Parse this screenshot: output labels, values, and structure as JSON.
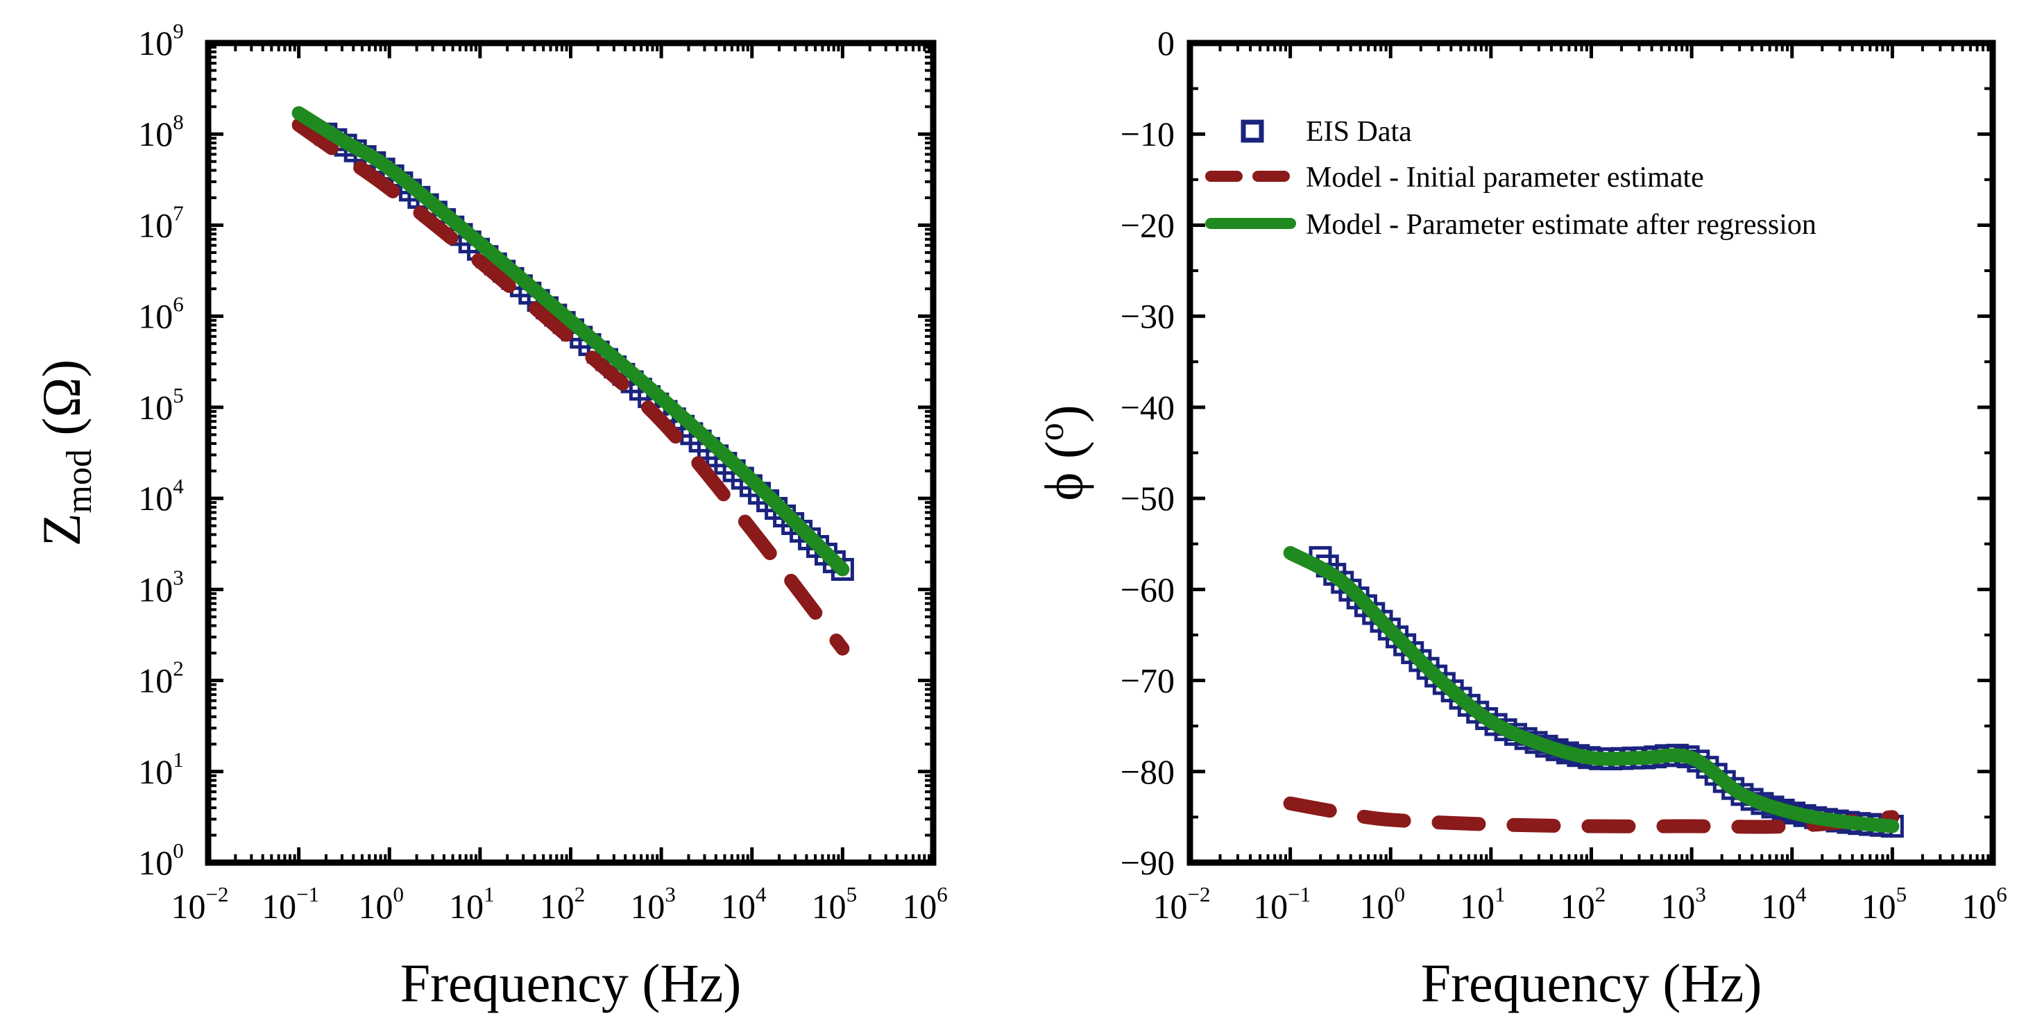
{
  "chart_data": [
    {
      "type": "line",
      "id": "bode-magnitude",
      "title": "",
      "xlabel": "Frequency (Hz)",
      "ylabel": "Zmod (Ω)",
      "ylabel_parts": {
        "main": "Z",
        "sub": "mod",
        "unit": " (Ω)"
      },
      "xscale": "log",
      "yscale": "log",
      "xlim_exp": [
        -2,
        6
      ],
      "ylim_exp": [
        0,
        9
      ],
      "x_ticks": [
        {
          "base": "10",
          "exp": "−2",
          "value": -2
        },
        {
          "base": "10",
          "exp": "−1",
          "value": -1
        },
        {
          "base": "10",
          "exp": "0",
          "value": 0
        },
        {
          "base": "10",
          "exp": "1",
          "value": 1
        },
        {
          "base": "10",
          "exp": "2",
          "value": 2
        },
        {
          "base": "10",
          "exp": "3",
          "value": 3
        },
        {
          "base": "10",
          "exp": "4",
          "value": 4
        },
        {
          "base": "10",
          "exp": "5",
          "value": 5
        },
        {
          "base": "10",
          "exp": "6",
          "value": 6
        }
      ],
      "y_ticks": [
        {
          "base": "10",
          "exp": "0",
          "value": 0
        },
        {
          "base": "10",
          "exp": "1",
          "value": 1
        },
        {
          "base": "10",
          "exp": "2",
          "value": 2
        },
        {
          "base": "10",
          "exp": "3",
          "value": 3
        },
        {
          "base": "10",
          "exp": "4",
          "value": 4
        },
        {
          "base": "10",
          "exp": "5",
          "value": 5
        },
        {
          "base": "10",
          "exp": "6",
          "value": 6
        },
        {
          "base": "10",
          "exp": "7",
          "value": 7
        },
        {
          "base": "10",
          "exp": "8",
          "value": 8
        },
        {
          "base": "10",
          "exp": "9",
          "value": 9
        }
      ],
      "series": [
        {
          "name": "EIS Data",
          "style": "square-marker",
          "color": "#1a237e",
          "x_log": [
            -0.7,
            0,
            1,
            2,
            3,
            4,
            5
          ],
          "y_log": [
            8.0,
            7.57,
            6.72,
            5.87,
            5.0,
            4.13,
            3.22
          ]
        },
        {
          "name": "Model - Initial parameter estimate",
          "style": "dashed",
          "color": "#8b1a1a",
          "x_log": [
            -1,
            -0.5,
            0,
            1,
            2,
            3,
            4,
            5
          ],
          "y_log": [
            8.1,
            7.75,
            7.4,
            6.6,
            5.75,
            4.85,
            3.65,
            2.35
          ]
        },
        {
          "name": "Model - Parameter estimate after regression",
          "style": "solid",
          "color": "#1f8a1f",
          "x_log": [
            -1,
            -0.5,
            0,
            1,
            2,
            3,
            4,
            5
          ],
          "y_log": [
            8.23,
            7.92,
            7.62,
            6.8,
            5.95,
            5.1,
            4.2,
            3.22
          ]
        }
      ]
    },
    {
      "type": "line",
      "id": "bode-phase",
      "title": "",
      "xlabel": "Frequency (Hz)",
      "ylabel": "ϕ (°)",
      "ylabel_parts": {
        "main": "ϕ (",
        "sup": "o",
        "end": ")"
      },
      "xscale": "log",
      "yscale": "linear",
      "xlim_exp": [
        -2,
        6
      ],
      "ylim": [
        -90,
        0
      ],
      "x_ticks": [
        {
          "base": "10",
          "exp": "−2",
          "value": -2
        },
        {
          "base": "10",
          "exp": "−1",
          "value": -1
        },
        {
          "base": "10",
          "exp": "0",
          "value": 0
        },
        {
          "base": "10",
          "exp": "1",
          "value": 1
        },
        {
          "base": "10",
          "exp": "2",
          "value": 2
        },
        {
          "base": "10",
          "exp": "3",
          "value": 3
        },
        {
          "base": "10",
          "exp": "4",
          "value": 4
        },
        {
          "base": "10",
          "exp": "5",
          "value": 5
        },
        {
          "base": "10",
          "exp": "6",
          "value": 6
        }
      ],
      "y_ticks": [
        {
          "label": "0",
          "value": 0
        },
        {
          "label": "−10",
          "value": -10
        },
        {
          "label": "−20",
          "value": -20
        },
        {
          "label": "−30",
          "value": -30
        },
        {
          "label": "−40",
          "value": -40
        },
        {
          "label": "−50",
          "value": -50
        },
        {
          "label": "−60",
          "value": -60
        },
        {
          "label": "−70",
          "value": -70
        },
        {
          "label": "−80",
          "value": -80
        },
        {
          "label": "−90",
          "value": -90
        }
      ],
      "legend": {
        "position": "top-left",
        "entries": [
          {
            "label": "EIS Data",
            "style": "square-marker",
            "color": "#1a237e"
          },
          {
            "label": "Model - Initial parameter estimate",
            "style": "dashed",
            "color": "#8b1a1a"
          },
          {
            "label": "Model - Parameter estimate after regression",
            "style": "solid",
            "color": "#1f8a1f"
          }
        ]
      },
      "series": [
        {
          "name": "EIS Data",
          "style": "square-marker",
          "color": "#1a237e",
          "x_log": [
            -0.7,
            -0.5,
            0,
            0.5,
            1,
            1.5,
            2,
            2.5,
            3,
            3.5,
            4,
            4.5,
            5
          ],
          "y": [
            -56.5,
            -59,
            -64.5,
            -70,
            -74.5,
            -77,
            -78.5,
            -78.5,
            -78.5,
            -82.5,
            -84.5,
            -85.5,
            -86
          ]
        },
        {
          "name": "Model - Initial parameter estimate",
          "style": "dashed",
          "color": "#8b1a1a",
          "x_log": [
            -1,
            -0.5,
            0,
            1,
            2,
            3,
            4,
            5
          ],
          "y": [
            -83.5,
            -84.5,
            -85.3,
            -85.8,
            -86,
            -86,
            -86,
            -85
          ]
        },
        {
          "name": "Model - Parameter estimate after regression",
          "style": "solid",
          "color": "#1f8a1f",
          "x_log": [
            -1,
            -0.5,
            0,
            0.5,
            1,
            1.5,
            2,
            2.5,
            3,
            3.5,
            4,
            4.5,
            5
          ],
          "y": [
            -56,
            -59,
            -64.5,
            -70,
            -74.5,
            -77,
            -78.5,
            -78.5,
            -78.5,
            -82.5,
            -84.5,
            -85.5,
            -86
          ]
        }
      ]
    }
  ]
}
